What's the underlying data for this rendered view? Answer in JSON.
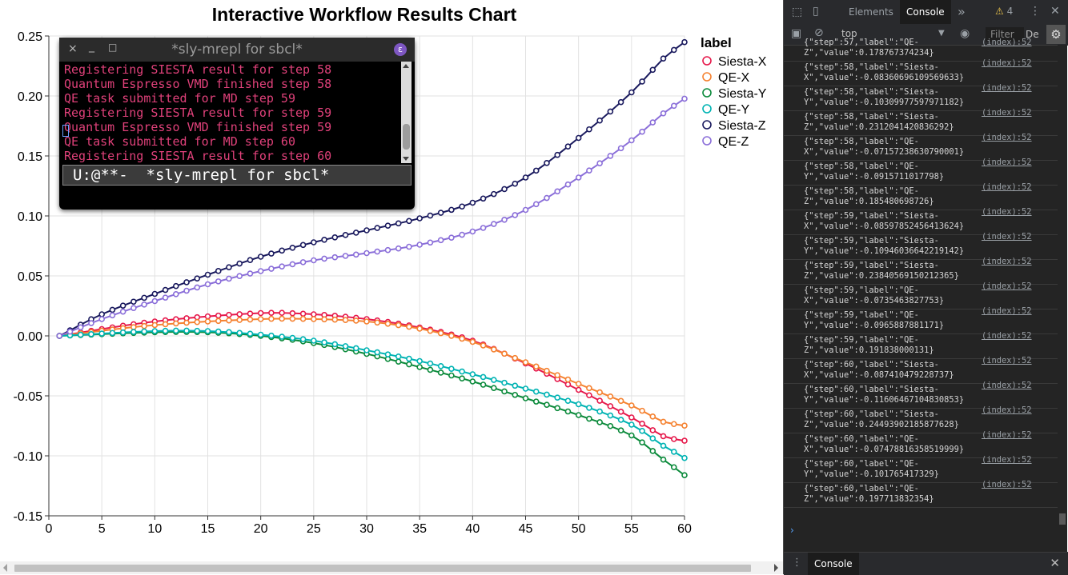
{
  "chart_data": {
    "type": "line",
    "title": "Interactive Workflow Results Chart",
    "legend_title": "label",
    "legend_position": "top-right",
    "xlim": [
      0,
      60
    ],
    "ylim": [
      -0.15,
      0.25
    ],
    "x_ticks": [
      0,
      5,
      10,
      15,
      20,
      25,
      30,
      35,
      40,
      45,
      50,
      55,
      60
    ],
    "y_ticks": [
      -0.15,
      -0.1,
      -0.05,
      0.0,
      0.05,
      0.1,
      0.15,
      0.2,
      0.25
    ],
    "x_tick_labels": [
      "0",
      "5",
      "10",
      "15",
      "20",
      "25",
      "30",
      "35",
      "40",
      "45",
      "50",
      "55",
      "60"
    ],
    "y_tick_labels": [
      "-0.15",
      "-0.10",
      "-0.05",
      "0.00",
      "0.05",
      "0.10",
      "0.15",
      "0.20",
      "0.25"
    ],
    "grid": true,
    "x": [
      1,
      2,
      3,
      4,
      5,
      6,
      7,
      8,
      9,
      10,
      11,
      12,
      13,
      14,
      15,
      16,
      17,
      18,
      19,
      20,
      21,
      22,
      23,
      24,
      25,
      26,
      27,
      28,
      29,
      30,
      31,
      32,
      33,
      34,
      35,
      36,
      37,
      38,
      39,
      40,
      41,
      42,
      43,
      44,
      45,
      46,
      47,
      48,
      49,
      50,
      51,
      52,
      53,
      54,
      55,
      56,
      57,
      58,
      59,
      60
    ],
    "series": [
      {
        "name": "Siesta-X",
        "color": "#e6194b",
        "keypoints": [
          [
            1,
            0
          ],
          [
            10,
            0.012
          ],
          [
            20,
            0.019
          ],
          [
            25,
            0.018
          ],
          [
            30,
            0.014
          ],
          [
            35,
            0.007
          ],
          [
            40,
            -0.004
          ],
          [
            45,
            -0.023
          ],
          [
            50,
            -0.045
          ],
          [
            55,
            -0.068
          ],
          [
            58,
            -0.0836
          ],
          [
            59,
            -0.086
          ],
          [
            60,
            -0.0874
          ]
        ]
      },
      {
        "name": "QE-X",
        "color": "#f58231",
        "keypoints": [
          [
            1,
            0
          ],
          [
            10,
            0.009
          ],
          [
            20,
            0.014
          ],
          [
            25,
            0.014
          ],
          [
            30,
            0.012
          ],
          [
            35,
            0.006
          ],
          [
            40,
            -0.005
          ],
          [
            45,
            -0.022
          ],
          [
            50,
            -0.04
          ],
          [
            55,
            -0.058
          ],
          [
            58,
            -0.0716
          ],
          [
            59,
            -0.0735
          ],
          [
            60,
            -0.0748
          ]
        ]
      },
      {
        "name": "Siesta-Y",
        "color": "#0b8a3b",
        "keypoints": [
          [
            1,
            0
          ],
          [
            10,
            0.003
          ],
          [
            15,
            0.003
          ],
          [
            20,
            0.0
          ],
          [
            25,
            -0.006
          ],
          [
            30,
            -0.015
          ],
          [
            35,
            -0.026
          ],
          [
            40,
            -0.038
          ],
          [
            45,
            -0.052
          ],
          [
            50,
            -0.066
          ],
          [
            55,
            -0.083
          ],
          [
            58,
            -0.1031
          ],
          [
            59,
            -0.1095
          ],
          [
            60,
            -0.1161
          ]
        ]
      },
      {
        "name": "QE-Y",
        "color": "#00b3b3",
        "keypoints": [
          [
            1,
            0
          ],
          [
            10,
            0.004
          ],
          [
            15,
            0.004
          ],
          [
            20,
            0.001
          ],
          [
            25,
            -0.004
          ],
          [
            30,
            -0.012
          ],
          [
            35,
            -0.021
          ],
          [
            40,
            -0.032
          ],
          [
            45,
            -0.044
          ],
          [
            50,
            -0.057
          ],
          [
            55,
            -0.074
          ],
          [
            58,
            -0.0916
          ],
          [
            59,
            -0.0966
          ],
          [
            60,
            -0.1018
          ]
        ]
      },
      {
        "name": "Siesta-Z",
        "color": "#1a1a5e",
        "keypoints": [
          [
            1,
            0
          ],
          [
            5,
            0.018
          ],
          [
            10,
            0.035
          ],
          [
            15,
            0.051
          ],
          [
            20,
            0.066
          ],
          [
            25,
            0.078
          ],
          [
            30,
            0.088
          ],
          [
            35,
            0.098
          ],
          [
            40,
            0.111
          ],
          [
            45,
            0.132
          ],
          [
            50,
            0.165
          ],
          [
            55,
            0.203
          ],
          [
            58,
            0.2312
          ],
          [
            59,
            0.2384
          ],
          [
            60,
            0.2449
          ]
        ]
      },
      {
        "name": "QE-Z",
        "color": "#8b6fd9",
        "keypoints": [
          [
            1,
            0
          ],
          [
            5,
            0.014
          ],
          [
            10,
            0.029
          ],
          [
            15,
            0.043
          ],
          [
            20,
            0.054
          ],
          [
            25,
            0.063
          ],
          [
            30,
            0.069
          ],
          [
            35,
            0.076
          ],
          [
            40,
            0.087
          ],
          [
            45,
            0.105
          ],
          [
            50,
            0.132
          ],
          [
            55,
            0.163
          ],
          [
            58,
            0.1855
          ],
          [
            59,
            0.1918
          ],
          [
            60,
            0.1977
          ]
        ]
      }
    ]
  },
  "repl": {
    "title": "*sly-mrepl for sbcl*",
    "lines": [
      "Registering SIESTA result for step 58",
      "Quantum Espresso VMD finished step 58",
      "QE task submitted for MD step 59",
      "Registering SIESTA result for step 59",
      "Quantum Espresso VMD finished step 59",
      "QE task submitted for MD step 60",
      "Registering SIESTA result for step 60"
    ],
    "modeline": "U:@**-  *sly-mrepl for sbcl*",
    "close_glyph": "×",
    "min_glyph": "_",
    "max_glyph": "□",
    "emacs_glyph": "ε"
  },
  "devtools": {
    "tabs": [
      "Elements",
      "Console"
    ],
    "active_tab": "Console",
    "more_glyph": "»",
    "warning_glyph": "⚠",
    "warning_count": "4",
    "context": "top",
    "filter_placeholder": "Filter",
    "levels_label": "De",
    "log_source": "(index):52",
    "logs": [
      {
        "msg": "{\"step\":57,\"label\":\"QE-\nZ\",\"value\":0.178767374234}"
      },
      {
        "msg": "{\"step\":58,\"label\":\"Siesta-\nX\",\"value\":-0.0836069610956963​3}"
      },
      {
        "msg": "{\"step\":58,\"label\":\"Siesta-\nY\",\"value\":-0.10309977597971182}"
      },
      {
        "msg": "{\"step\":58,\"label\":\"Siesta-\nZ\",\"value\":0.2312041420836292}"
      },
      {
        "msg": "{\"step\":58,\"label\":\"QE-\nX\",\"value\":-0.07157238630790001}"
      },
      {
        "msg": "{\"step\":58,\"label\":\"QE-\nY\",\"value\":-0.0915711017798}"
      },
      {
        "msg": "{\"step\":58,\"label\":\"QE-\nZ\",\"value\":0.185480698726}"
      },
      {
        "msg": "{\"step\":59,\"label\":\"Siesta-\nX\",\"value\":-0.08597852456413624}"
      },
      {
        "msg": "{\"step\":59,\"label\":\"Siesta-\nY\",\"value\":-0.10946036642219142}"
      },
      {
        "msg": "{\"step\":59,\"label\":\"Siesta-\nZ\",\"value\":0.23840569150212365}"
      },
      {
        "msg": "{\"step\":59,\"label\":\"QE-\nX\",\"value\":-0.0735463827753}"
      },
      {
        "msg": "{\"step\":59,\"label\":\"QE-\nY\",\"value\":-0.0965887881171}"
      },
      {
        "msg": "{\"step\":59,\"label\":\"QE-\nZ\",\"value\":0.191838000131}"
      },
      {
        "msg": "{\"step\":60,\"label\":\"Siesta-\nX\",\"value\":-0.087410479228737}"
      },
      {
        "msg": "{\"step\":60,\"label\":\"Siesta-\nY\",\"value\":-0.11606467104830853}"
      },
      {
        "msg": "{\"step\":60,\"label\":\"Siesta-\nZ\",\"value\":0.24493902185877628}"
      },
      {
        "msg": "{\"step\":60,\"label\":\"QE-\nX\",\"value\":-0.07478816358519999}"
      },
      {
        "msg": "{\"step\":60,\"label\":\"QE-\nY\",\"value\":-0.101765417329}"
      },
      {
        "msg": "{\"step\":60,\"label\":\"QE-\nZ\",\"value\":0.197713832354}"
      }
    ],
    "prompt_glyph": "›",
    "drawer_tab": "Console",
    "drawer_menu_glyph": "⋮",
    "close_glyph": "✕",
    "gear_glyph": "⚙",
    "kebab_glyph": "⋮"
  }
}
